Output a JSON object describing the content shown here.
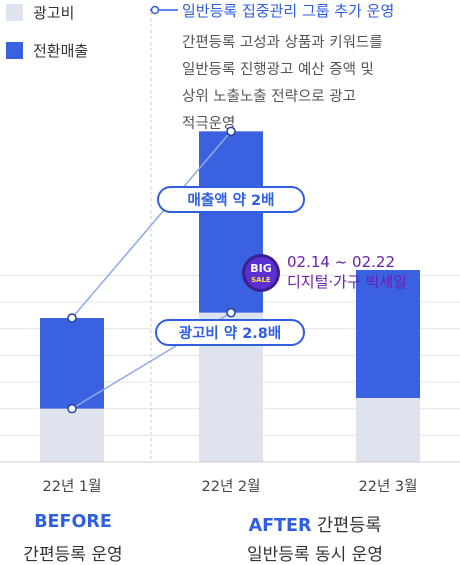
{
  "legend": {
    "items": [
      {
        "label": "광고비",
        "color": "#dfe3ee"
      },
      {
        "label": "전환매출",
        "color": "#3a62e0"
      }
    ]
  },
  "annotation": {
    "title": "일반등록 집중관리 그룹 추가 운영",
    "lines": [
      "간편등록 고성과 상품과 키워드를",
      "일반등록 진행광고 예산 증액 및",
      "상위 노출노출 전략으로 광고",
      "적극운영"
    ]
  },
  "callouts": {
    "sales": "매출액 약 2배",
    "ad_cost": "광고비 약 2.8배"
  },
  "sale_badge": {
    "logo_text": "BIG SALE",
    "date": "02.14 ~ 02.22",
    "name": "디지털·가구 빅세일"
  },
  "footer": {
    "before_label": "BEFORE",
    "before_desc": "간편등록 운영",
    "after_label": "AFTER",
    "after_title": "간편등록",
    "after_desc": "일반등록 동시 운영"
  },
  "chart_data": {
    "type": "bar",
    "stacked": true,
    "categories": [
      "22년 1월",
      "22년 2월",
      "22년 3월"
    ],
    "series": [
      {
        "name": "광고비",
        "values": [
          1.0,
          2.8,
          1.2
        ],
        "color": "#dfe3ee"
      },
      {
        "name": "전환매출",
        "values": [
          1.7,
          3.4,
          2.4
        ],
        "color": "#3a62e0"
      }
    ],
    "ylim": [
      0,
      6
    ],
    "grid": true,
    "legend_position": "top-left",
    "colors": {
      "accent": "#2f5ee0",
      "connector": "#8eaae8",
      "grid": "#e6e6e6"
    }
  }
}
